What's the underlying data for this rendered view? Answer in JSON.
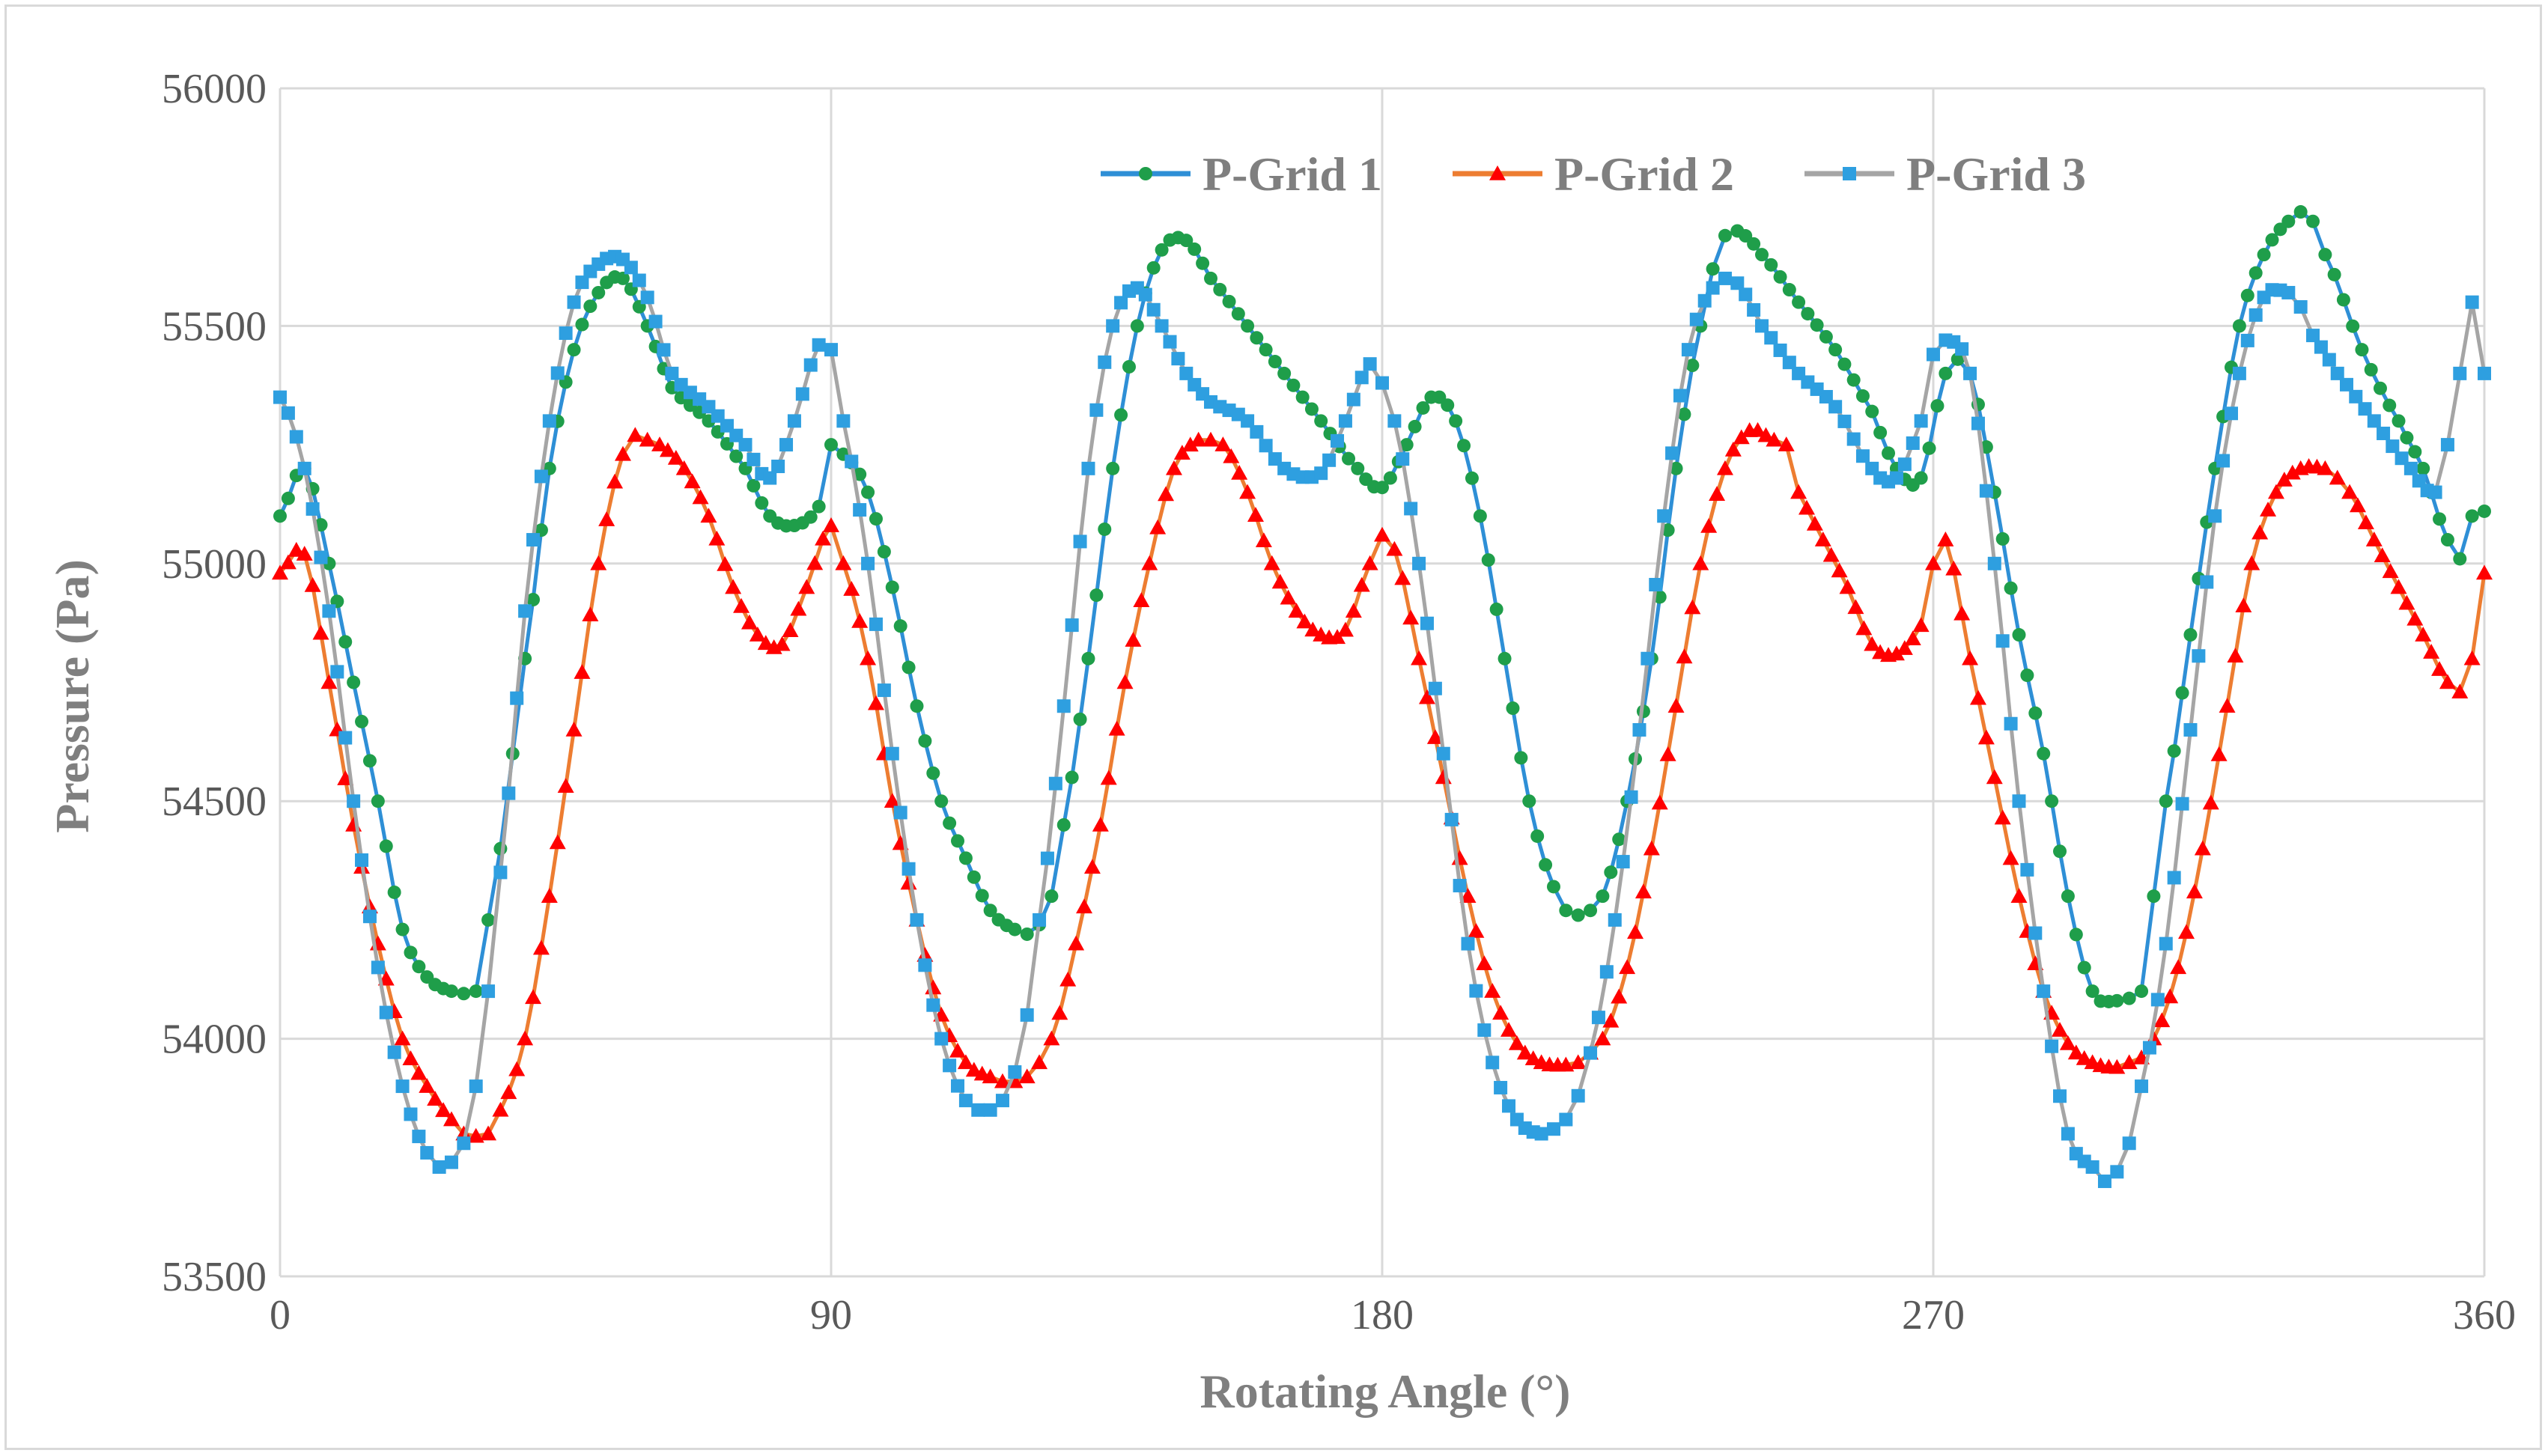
{
  "chart_data": {
    "type": "line",
    "title": "",
    "xlabel": "Rotating Angle (°)",
    "ylabel": "Pressure (Pa)",
    "xlim": [
      0,
      360
    ],
    "ylim": [
      53500,
      56000
    ],
    "xticks": [
      0,
      90,
      180,
      270,
      360
    ],
    "yticks": [
      53500,
      54000,
      54500,
      55000,
      55500,
      56000
    ],
    "grid": true,
    "legend_position": "top-right",
    "series": [
      {
        "name": "P-Grid 1",
        "line_color": "#2e8fd6",
        "marker_color": "#1f9e4a",
        "marker": "circle",
        "x": [
          0,
          4,
          8,
          12,
          16,
          20,
          24,
          28,
          30,
          32,
          34,
          36,
          38,
          40,
          44,
          48,
          52,
          56,
          60,
          64,
          70,
          76,
          80,
          84,
          88,
          90,
          92,
          96,
          100,
          104,
          108,
          112,
          116,
          120,
          122,
          124,
          126,
          128,
          132,
          136,
          140,
          144,
          148,
          152,
          158,
          164,
          170,
          176,
          180,
          184,
          188,
          192,
          196,
          200,
          204,
          208,
          210,
          212,
          214,
          216,
          220,
          224,
          228,
          232,
          234,
          236,
          238,
          242,
          248,
          254,
          260,
          264,
          268,
          272,
          274,
          276,
          280,
          284,
          288,
          292,
          296,
          300,
          302,
          304,
          306,
          308,
          312,
          316,
          320,
          324,
          328,
          330,
          332,
          334,
          340,
          346,
          350,
          354,
          356,
          358,
          360
        ],
        "values": [
          55100,
          55200,
          55000,
          54750,
          54500,
          54230,
          54130,
          54100,
          54095,
          54100,
          54250,
          54400,
          54600,
          54800,
          55200,
          55450,
          55570,
          55600,
          55500,
          55370,
          55300,
          55200,
          55100,
          55080,
          55120,
          55250,
          55230,
          55150,
          54950,
          54700,
          54500,
          54380,
          54270,
          54230,
          54220,
          54240,
          54300,
          54450,
          54800,
          55200,
          55500,
          55660,
          55680,
          55600,
          55500,
          55400,
          55300,
          55200,
          55160,
          55250,
          55350,
          55300,
          55100,
          54800,
          54500,
          54320,
          54270,
          54260,
          54270,
          54300,
          54500,
          54800,
          55200,
          55500,
          55620,
          55690,
          55700,
          55650,
          55550,
          55450,
          55320,
          55200,
          55180,
          55400,
          55430,
          55400,
          55150,
          54850,
          54600,
          54300,
          54100,
          54080,
          54085,
          54100,
          54300,
          54500,
          54850,
          55200,
          55500,
          55650,
          55720,
          55740,
          55720,
          55650,
          55450,
          55300,
          55200,
          55050,
          55010,
          55100,
          55110
        ]
      },
      {
        "name": "P-Grid 2",
        "line_color": "#ed7d31",
        "marker_color": "#ff0000",
        "marker": "triangle",
        "x": [
          0,
          4,
          8,
          12,
          16,
          20,
          24,
          28,
          30,
          32,
          34,
          36,
          40,
          44,
          48,
          52,
          56,
          58,
          60,
          62,
          66,
          70,
          74,
          78,
          82,
          86,
          90,
          92,
          96,
          100,
          104,
          108,
          112,
          116,
          118,
          120,
          122,
          124,
          126,
          130,
          134,
          138,
          142,
          146,
          150,
          152,
          154,
          158,
          162,
          166,
          170,
          174,
          178,
          180,
          182,
          186,
          190,
          194,
          198,
          202,
          206,
          210,
          212,
          214,
          216,
          220,
          224,
          228,
          232,
          236,
          240,
          244,
          246,
          248,
          252,
          256,
          260,
          264,
          268,
          270,
          272,
          276,
          280,
          284,
          288,
          292,
          296,
          300,
          302,
          304,
          306,
          310,
          314,
          318,
          322,
          326,
          330,
          334,
          336,
          338,
          342,
          346,
          350,
          354,
          356,
          358,
          360
        ],
        "values": [
          54980,
          55020,
          54750,
          54450,
          54200,
          54000,
          53900,
          53830,
          53800,
          53795,
          53800,
          53850,
          54000,
          54300,
          54650,
          55000,
          55230,
          55270,
          55260,
          55250,
          55200,
          55100,
          54950,
          54850,
          54830,
          54950,
          55080,
          55000,
          54800,
          54500,
          54250,
          54050,
          53950,
          53920,
          53910,
          53910,
          53920,
          53950,
          54000,
          54200,
          54450,
          54750,
          55000,
          55200,
          55260,
          55260,
          55250,
          55150,
          55000,
          54900,
          54850,
          54860,
          55000,
          55060,
          55030,
          54800,
          54550,
          54300,
          54100,
          53990,
          53950,
          53945,
          53950,
          53970,
          54000,
          54150,
          54400,
          54700,
          55000,
          55200,
          55280,
          55260,
          55250,
          55150,
          55050,
          54950,
          54830,
          54810,
          54870,
          55000,
          55050,
          54800,
          54550,
          54300,
          54100,
          53990,
          53950,
          53940,
          53950,
          53960,
          54000,
          54150,
          54400,
          54700,
          55000,
          55150,
          55200,
          55200,
          55180,
          55150,
          55050,
          54950,
          54850,
          54750,
          54730,
          54800,
          54980
        ]
      },
      {
        "name": "P-Grid 3",
        "line_color": "#a5a5a5",
        "marker_color": "#2e9fe0",
        "marker": "square",
        "x": [
          0,
          4,
          8,
          12,
          16,
          20,
          24,
          26,
          28,
          30,
          32,
          34,
          36,
          40,
          44,
          48,
          52,
          56,
          60,
          64,
          70,
          76,
          80,
          84,
          88,
          90,
          92,
          96,
          100,
          104,
          108,
          112,
          114,
          116,
          118,
          120,
          122,
          124,
          128,
          132,
          136,
          140,
          144,
          148,
          152,
          158,
          164,
          170,
          174,
          178,
          180,
          182,
          186,
          190,
          194,
          198,
          202,
          206,
          208,
          210,
          212,
          214,
          218,
          222,
          226,
          230,
          234,
          236,
          238,
          242,
          248,
          254,
          260,
          264,
          268,
          270,
          272,
          276,
          280,
          284,
          288,
          292,
          296,
          298,
          300,
          302,
          304,
          308,
          312,
          316,
          320,
          324,
          328,
          330,
          332,
          336,
          342,
          348,
          352,
          354,
          356,
          358,
          360
        ],
        "values": [
          55350,
          55200,
          54900,
          54500,
          54150,
          53900,
          53760,
          53730,
          53740,
          53780,
          53900,
          54100,
          54350,
          54900,
          55300,
          55550,
          55630,
          55640,
          55560,
          55400,
          55330,
          55250,
          55180,
          55300,
          55460,
          55450,
          55300,
          55000,
          54600,
          54250,
          54000,
          53870,
          53850,
          53850,
          53870,
          53930,
          54050,
          54250,
          54700,
          55200,
          55500,
          55580,
          55500,
          55400,
          55340,
          55300,
          55200,
          55190,
          55300,
          55420,
          55380,
          55300,
          55000,
          54600,
          54200,
          53950,
          53830,
          53800,
          53810,
          53830,
          53880,
          53970,
          54250,
          54650,
          55100,
          55450,
          55580,
          55600,
          55590,
          55500,
          55400,
          55330,
          55200,
          55180,
          55300,
          55440,
          55470,
          55400,
          55000,
          54500,
          54100,
          53800,
          53730,
          53700,
          53720,
          53780,
          53900,
          54200,
          54650,
          55100,
          55400,
          55560,
          55570,
          55540,
          55480,
          55400,
          55300,
          55200,
          55150,
          55250,
          55400,
          55550,
          55400
        ]
      }
    ]
  }
}
